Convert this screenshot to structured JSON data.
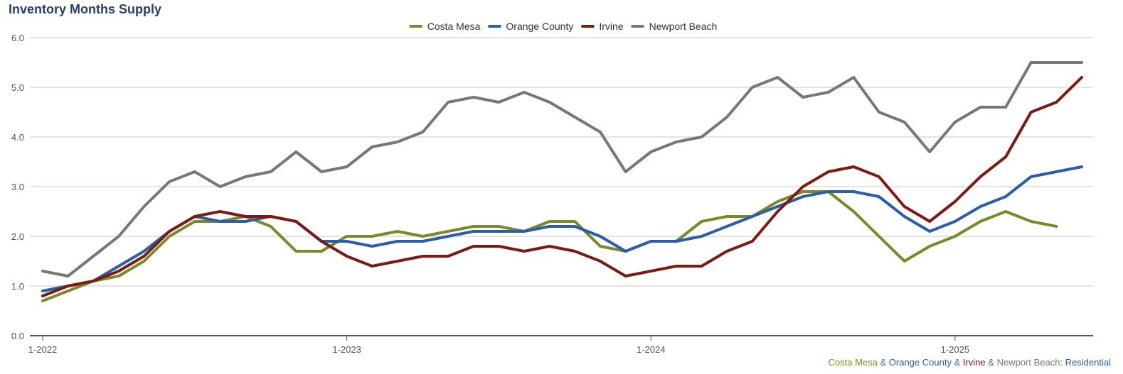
{
  "chart_data": {
    "type": "line",
    "title": "Inventory Months Supply",
    "x": [
      "1-2022",
      "2-2022",
      "3-2022",
      "4-2022",
      "5-2022",
      "6-2022",
      "7-2022",
      "8-2022",
      "9-2022",
      "10-2022",
      "11-2022",
      "12-2022",
      "1-2023",
      "2-2023",
      "3-2023",
      "4-2023",
      "5-2023",
      "6-2023",
      "7-2023",
      "8-2023",
      "9-2023",
      "10-2023",
      "11-2023",
      "12-2023",
      "1-2024",
      "2-2024",
      "3-2024",
      "4-2024",
      "5-2024",
      "6-2024",
      "7-2024",
      "8-2024",
      "9-2024",
      "10-2024",
      "11-2024",
      "12-2024",
      "1-2025",
      "2-2025",
      "3-2025",
      "4-2025",
      "5-2025",
      "6-2025"
    ],
    "x_tick_labels": [
      "1-2022",
      "1-2023",
      "1-2024",
      "1-2025"
    ],
    "ylim": [
      0,
      6
    ],
    "y_ticks": [
      "0.0",
      "1.0",
      "2.0",
      "3.0",
      "4.0",
      "5.0",
      "6.0"
    ],
    "grid": true,
    "legend_position": "top-center",
    "series": [
      {
        "name": "Costa Mesa",
        "color": "#7a8a2a",
        "values": [
          0.7,
          0.9,
          1.1,
          1.2,
          1.5,
          2.0,
          2.3,
          2.3,
          2.4,
          2.2,
          1.7,
          1.7,
          2.0,
          2.0,
          2.1,
          2.0,
          2.1,
          2.2,
          2.2,
          2.1,
          2.3,
          2.3,
          1.8,
          1.7,
          1.9,
          1.9,
          2.3,
          2.4,
          2.4,
          2.7,
          2.9,
          2.9,
          2.5,
          2.0,
          1.5,
          1.8,
          2.0,
          2.3,
          2.5,
          2.3,
          2.2,
          null
        ]
      },
      {
        "name": "Orange County",
        "color": "#2a5ea8",
        "values": [
          0.9,
          1.0,
          1.1,
          1.4,
          1.7,
          2.1,
          2.4,
          2.3,
          2.3,
          2.4,
          2.3,
          1.9,
          1.9,
          1.8,
          1.9,
          1.9,
          2.0,
          2.1,
          2.1,
          2.1,
          2.2,
          2.2,
          2.0,
          1.7,
          1.9,
          1.9,
          2.0,
          2.2,
          2.4,
          2.6,
          2.8,
          2.9,
          2.9,
          2.8,
          2.4,
          2.1,
          2.3,
          2.6,
          2.8,
          3.2,
          3.3,
          3.4
        ]
      },
      {
        "name": "Irvine",
        "color": "#7d1a12",
        "values": [
          0.8,
          1.0,
          1.1,
          1.3,
          1.6,
          2.1,
          2.4,
          2.5,
          2.4,
          2.4,
          2.3,
          1.9,
          1.6,
          1.4,
          1.5,
          1.6,
          1.6,
          1.8,
          1.8,
          1.7,
          1.8,
          1.7,
          1.5,
          1.2,
          1.3,
          1.4,
          1.4,
          1.7,
          1.9,
          2.5,
          3.0,
          3.3,
          3.4,
          3.2,
          2.6,
          2.3,
          2.7,
          3.2,
          3.6,
          4.5,
          4.7,
          5.2
        ]
      },
      {
        "name": "Newport Beach",
        "color": "#777777",
        "values": [
          1.3,
          1.2,
          1.6,
          2.0,
          2.6,
          3.1,
          3.3,
          3.0,
          3.2,
          3.3,
          3.7,
          3.3,
          3.4,
          3.8,
          3.9,
          4.1,
          4.7,
          4.8,
          4.7,
          4.9,
          4.7,
          4.4,
          4.1,
          3.3,
          3.7,
          3.9,
          4.0,
          4.4,
          5.0,
          5.2,
          4.8,
          4.9,
          5.2,
          4.5,
          4.3,
          3.7,
          4.3,
          4.6,
          4.6,
          5.5,
          5.5,
          5.5
        ]
      }
    ]
  },
  "footer": {
    "costa_mesa": "Costa Mesa",
    "sep1": " & ",
    "orange_county": "Orange County",
    "sep2": " & ",
    "irvine": "Irvine",
    "sep3": " & ",
    "newport_beach": "Newport Beach",
    "suffix": ": Residential"
  },
  "colors": {
    "title": "#2a3f6b",
    "footer_separator": "#5a6a80",
    "footer_suffix": "#2a5ea8",
    "grid": "#c8c8c8",
    "axis": "#555555"
  }
}
